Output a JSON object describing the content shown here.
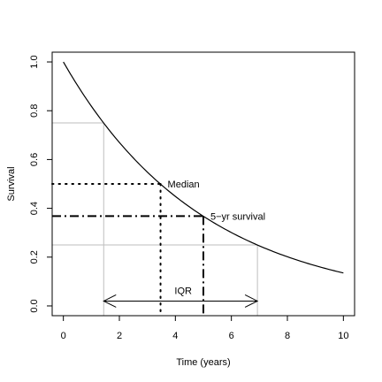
{
  "chart_data": {
    "type": "line",
    "title": "",
    "xlabel": "Time (years)",
    "ylabel": "Survival",
    "xlim": [
      -0.4,
      10.4
    ],
    "ylim": [
      -0.04,
      1.04
    ],
    "x_ticks": [
      0,
      2,
      4,
      6,
      8,
      10
    ],
    "y_ticks": [
      0.0,
      0.2,
      0.4,
      0.6,
      0.8,
      1.0
    ],
    "x_tick_labels": [
      "0",
      "2",
      "4",
      "6",
      "8",
      "10"
    ],
    "y_tick_labels": [
      "0.0",
      "0.2",
      "0.4",
      "0.6",
      "0.8",
      "1.0"
    ],
    "grid": false,
    "series": [
      {
        "x": [
          0,
          0.5,
          1,
          1.5,
          2,
          2.5,
          3,
          3.5,
          4,
          4.5,
          5,
          5.5,
          6,
          6.5,
          7,
          7.5,
          8,
          8.5,
          9,
          9.5,
          10
        ],
        "y": [
          1.0,
          0.905,
          0.819,
          0.741,
          0.67,
          0.607,
          0.549,
          0.497,
          0.449,
          0.407,
          0.368,
          0.333,
          0.301,
          0.273,
          0.247,
          0.223,
          0.202,
          0.183,
          0.165,
          0.15,
          0.135
        ]
      }
    ],
    "annotations": {
      "median": {
        "label": "Median",
        "x": 3.47,
        "y": 0.5
      },
      "five_year": {
        "label": "5−yr survival",
        "x": 5.0,
        "y": 0.368
      },
      "quartiles": {
        "q1": {
          "x": 1.44,
          "y": 0.75
        },
        "q3": {
          "x": 6.93,
          "y": 0.25
        }
      },
      "iqr": {
        "label": "IQR",
        "x_start": 1.44,
        "x_end": 6.93,
        "y": 0.02
      }
    }
  }
}
